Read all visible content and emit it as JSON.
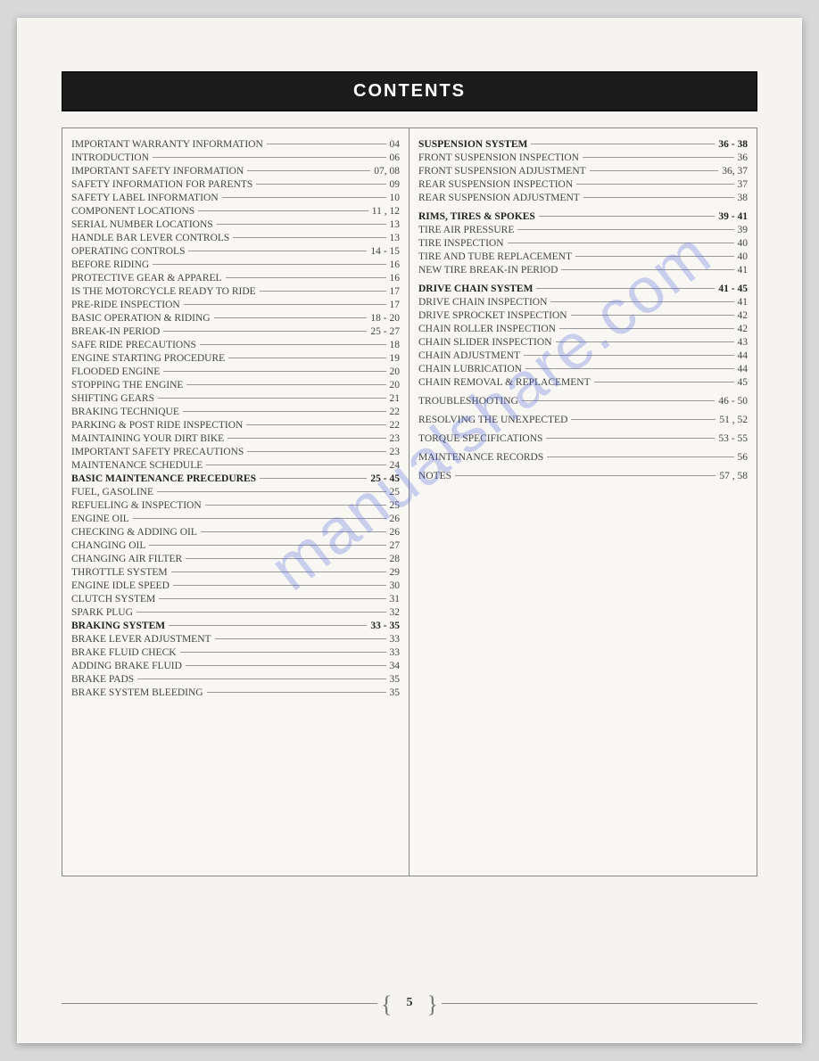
{
  "header_title": "CONTENTS",
  "watermark_text": "manualshare.com",
  "page_number": "5",
  "left_column": [
    {
      "label": "IMPORTANT WARRANTY INFORMATION",
      "page": "04"
    },
    {
      "label": "INTRODUCTION",
      "page": "06"
    },
    {
      "label": "IMPORTANT SAFETY INFORMATION",
      "page": "07, 08"
    },
    {
      "label": "SAFETY INFORMATION FOR PARENTS",
      "page": "09"
    },
    {
      "label": "SAFETY LABEL INFORMATION",
      "page": "10"
    },
    {
      "label": "COMPONENT LOCATIONS",
      "page": "11 , 12"
    },
    {
      "label": "SERIAL NUMBER LOCATIONS",
      "page": "13"
    },
    {
      "label": "HANDLE BAR LEVER CONTROLS",
      "page": "13"
    },
    {
      "label": "OPERATING CONTROLS",
      "page": "14 - 15"
    },
    {
      "label": "BEFORE RIDING",
      "page": "16"
    },
    {
      "label": "PROTECTIVE GEAR & APPAREL",
      "page": "16"
    },
    {
      "label": "IS THE MOTORCYCLE READY TO RIDE",
      "page": "17"
    },
    {
      "label": "PRE-RIDE INSPECTION",
      "page": "17"
    },
    {
      "label": "BASIC OPERATION & RIDING",
      "page": "18 - 20"
    },
    {
      "label": "BREAK-IN PERIOD",
      "page": "25 - 27"
    },
    {
      "label": "SAFE RIDE PRECAUTIONS",
      "page": "18"
    },
    {
      "label": "ENGINE STARTING PROCEDURE",
      "page": "19"
    },
    {
      "label": "FLOODED ENGINE",
      "page": "20"
    },
    {
      "label": "STOPPING THE ENGINE",
      "page": "20"
    },
    {
      "label": "SHIFTING GEARS",
      "page": "21"
    },
    {
      "label": "BRAKING TECHNIQUE",
      "page": "22"
    },
    {
      "label": "PARKING & POST RIDE INSPECTION",
      "page": "22"
    },
    {
      "label": "MAINTAINING YOUR DIRT BIKE",
      "page": "23"
    },
    {
      "label": "IMPORTANT SAFETY PRECAUTIONS",
      "page": "23"
    },
    {
      "label": "MAINTENANCE SCHEDULE",
      "page": "24"
    },
    {
      "label": "BASIC MAINTENANCE PRECEDURES",
      "page": "25 - 45",
      "bold": true
    },
    {
      "label": "FUEL, GASOLINE",
      "page": "25"
    },
    {
      "label": "REFUELING & INSPECTION",
      "page": "25"
    },
    {
      "label": "ENGINE OIL",
      "page": "26"
    },
    {
      "label": "CHECKING & ADDING OIL",
      "page": "26"
    },
    {
      "label": "CHANGING OIL",
      "page": "27"
    },
    {
      "label": "CHANGING AIR FILTER",
      "page": "28"
    },
    {
      "label": "THROTTLE SYSTEM",
      "page": "29"
    },
    {
      "label": "ENGINE IDLE SPEED",
      "page": "30"
    },
    {
      "label": "CLUTCH SYSTEM",
      "page": "31"
    },
    {
      "label": "SPARK PLUG",
      "page": "32"
    },
    {
      "label": "BRAKING SYSTEM",
      "page": "33 - 35",
      "bold": true
    },
    {
      "label": "BRAKE LEVER ADJUSTMENT",
      "page": "33"
    },
    {
      "label": "BRAKE FLUID CHECK",
      "page": "33"
    },
    {
      "label": "ADDING BRAKE FLUID",
      "page": "34"
    },
    {
      "label": "BRAKE PADS",
      "page": "35"
    },
    {
      "label": "BRAKE SYSTEM BLEEDING",
      "page": "35"
    }
  ],
  "right_column": [
    {
      "label": "SUSPENSION SYSTEM",
      "page": "36 - 38",
      "bold": true
    },
    {
      "label": "FRONT SUSPENSION INSPECTION",
      "page": "36"
    },
    {
      "label": "FRONT SUSPENSION ADJUSTMENT",
      "page": "36, 37"
    },
    {
      "label": "REAR SUSPENSION INSPECTION",
      "page": "37"
    },
    {
      "label": "REAR SUSPENSION ADJUSTMENT",
      "page": "38"
    },
    {
      "gap": true
    },
    {
      "label": "RIMS, TIRES & SPOKES",
      "page": "39 - 41",
      "bold": true
    },
    {
      "label": "TIRE AIR PRESSURE",
      "page": "39"
    },
    {
      "label": "TIRE INSPECTION",
      "page": "40"
    },
    {
      "label": "TIRE AND TUBE REPLACEMENT",
      "page": "40"
    },
    {
      "label": "NEW TIRE BREAK-IN PERIOD",
      "page": "41"
    },
    {
      "gap": true
    },
    {
      "label": "DRIVE CHAIN SYSTEM",
      "page": "41 - 45",
      "bold": true
    },
    {
      "label": "DRIVE CHAIN INSPECTION",
      "page": "41"
    },
    {
      "label": "DRIVE SPROCKET INSPECTION",
      "page": "42"
    },
    {
      "label": "CHAIN ROLLER INSPECTION",
      "page": "42"
    },
    {
      "label": "CHAIN SLIDER INSPECTION",
      "page": "43"
    },
    {
      "label": "CHAIN ADJUSTMENT",
      "page": "44"
    },
    {
      "label": "CHAIN LUBRICATION",
      "page": "44"
    },
    {
      "label": "CHAIN REMOVAL & REPLACEMENT",
      "page": "45"
    },
    {
      "gap": true
    },
    {
      "label": "TROUBLESHOOTING",
      "page": "46 - 50"
    },
    {
      "gap": true
    },
    {
      "label": "RESOLVING THE UNEXPECTED",
      "page": "51 , 52"
    },
    {
      "gap": true
    },
    {
      "label": "TORQUE SPECIFICATIONS",
      "page": "53 - 55"
    },
    {
      "gap": true
    },
    {
      "label": "MAINTENANCE RECORDS",
      "page": "56"
    },
    {
      "gap": true
    },
    {
      "label": "NOTES",
      "page": "57 , 58"
    }
  ],
  "styling": {
    "page_bg": "#f5f4f0",
    "header_bg": "#1c1c1c",
    "header_color": "#ffffff",
    "border_color": "#888888",
    "text_color": "#444444",
    "watermark_color": "rgba(80,100,220,0.28)",
    "font_size_entry": 11.5,
    "font_size_header": 20
  }
}
